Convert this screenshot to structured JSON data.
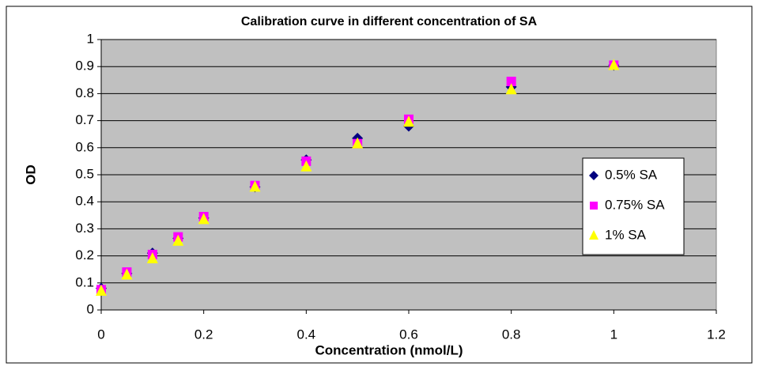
{
  "chart_data": {
    "type": "scatter",
    "title": "Calibration curve in different concentration of SA",
    "x_label": "Concentration (nmol/L)",
    "y_label": "OD",
    "x": [
      0,
      0.05,
      0.1,
      0.15,
      0.2,
      0.3,
      0.4,
      0.5,
      0.6,
      0.8,
      1
    ],
    "series": [
      {
        "name": "0.5% SA",
        "color": "#000080",
        "marker": "diamond",
        "values": [
          0.08,
          0.135,
          0.21,
          0.265,
          0.34,
          0.455,
          0.555,
          0.635,
          0.68,
          0.825,
          0.905
        ]
      },
      {
        "name": "0.75% SA",
        "color": "#ff00ff",
        "marker": "square",
        "values": [
          0.075,
          0.14,
          0.205,
          0.27,
          0.345,
          0.46,
          0.55,
          0.615,
          0.705,
          0.845,
          0.905
        ]
      },
      {
        "name": "1% SA",
        "color": "#ffff00",
        "marker": "triangle",
        "values": [
          0.07,
          0.13,
          0.19,
          0.255,
          0.335,
          0.455,
          0.53,
          0.615,
          0.695,
          0.815,
          0.905
        ]
      }
    ],
    "xlim": [
      0,
      1.2
    ],
    "xticks": [
      0,
      0.2,
      0.4,
      0.6,
      0.8,
      1,
      1.2
    ],
    "ylim": [
      0,
      1
    ],
    "yticks": [
      0,
      0.1,
      0.2,
      0.3,
      0.4,
      0.5,
      0.6,
      0.7,
      0.8,
      0.9,
      1
    ],
    "grid": true,
    "legend_position": "right",
    "plot_background": "#c0c0c0"
  }
}
